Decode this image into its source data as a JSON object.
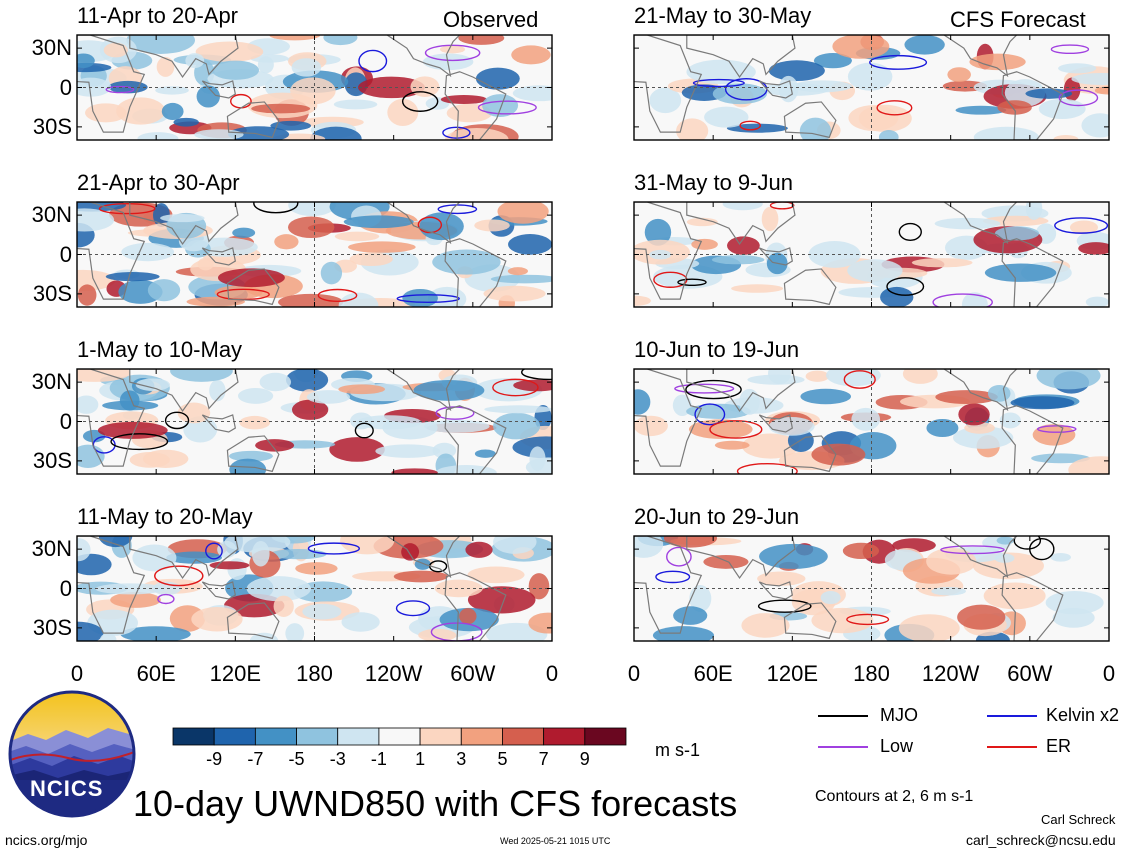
{
  "figure": {
    "title": "10-day UWND850 with CFS forecasts",
    "observed_label": "Observed",
    "forecast_label": "CFS Forecast",
    "units": "m s-1",
    "contour_note": "Contours at 2, 6 m s-1",
    "author": "Carl Schreck",
    "email": "carl_schreck@ncsu.edu",
    "website": "ncics.org/mjo",
    "timestamp": "Wed 2025-05-21 1015 UTC",
    "logo_text": "NCICS"
  },
  "legend": {
    "items": [
      {
        "label": "MJO",
        "color": "#000000"
      },
      {
        "label": "Kelvin x2",
        "color": "#1a1adc"
      },
      {
        "label": "Low",
        "color": "#a040e0"
      },
      {
        "label": "ER",
        "color": "#e01818"
      }
    ]
  },
  "colorbar": {
    "labels": [
      "-9",
      "-7",
      "-5",
      "-3",
      "-1",
      "1",
      "3",
      "5",
      "7",
      "9"
    ],
    "colors": [
      "#0a3668",
      "#1f64ad",
      "#4391c5",
      "#8fc3df",
      "#cfe5f1",
      "#f8f8f8",
      "#fbd6c1",
      "#f2a17f",
      "#d55f4e",
      "#b01b2e",
      "#6a0720"
    ]
  },
  "chart_data": {
    "type": "heatmap",
    "variable": "UWND850",
    "units": "m s-1",
    "x_ticks": [
      "0",
      "60E",
      "120E",
      "180",
      "120W",
      "60W",
      "0"
    ],
    "y_ticks": [
      "30N",
      "0",
      "30S"
    ],
    "contour_levels": [
      2,
      6
    ],
    "observed_panels": [
      {
        "title": "11-Apr to 20-Apr"
      },
      {
        "title": "21-Apr to 30-Apr"
      },
      {
        "title": "1-May to 10-May"
      },
      {
        "title": "11-May to 20-May"
      }
    ],
    "forecast_panels": [
      {
        "title": "21-May to 30-May"
      },
      {
        "title": "31-May to 9-Jun"
      },
      {
        "title": "10-Jun to 19-Jun"
      },
      {
        "title": "20-Jun to 29-Jun"
      }
    ]
  }
}
